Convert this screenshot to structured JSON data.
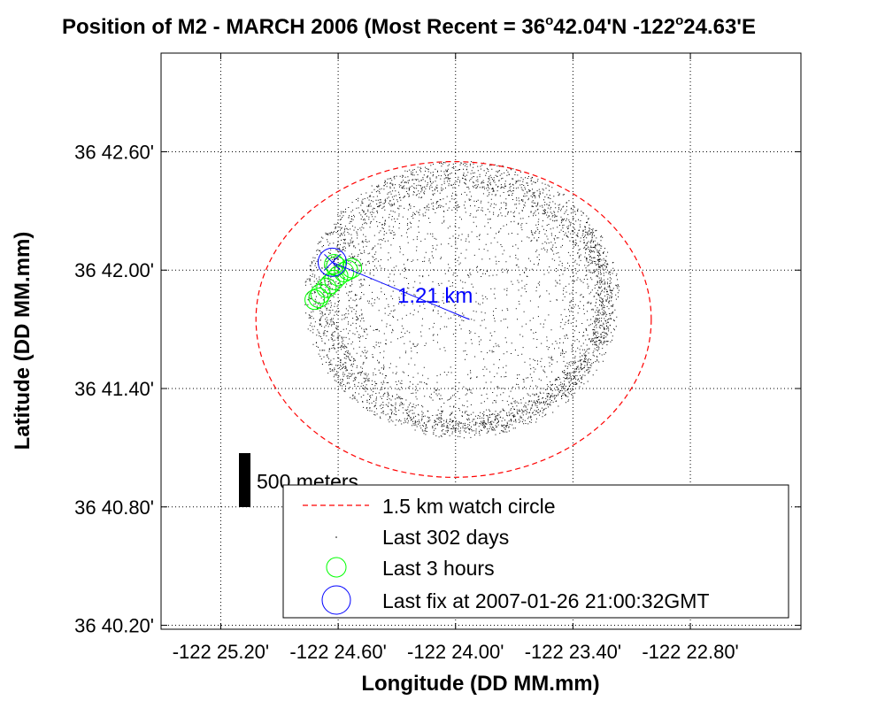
{
  "chart_data": {
    "type": "scatter",
    "title": {
      "prefix": "Position of M2 - MARCH 2006 (Most Recent =  36",
      "deg": "o",
      "mid": "42.04'N -122",
      "deg2": "o",
      "suffix": "24.63'E"
    },
    "xlabel": "Longitude (DD MM.mm)",
    "ylabel": "Latitude (DD MM.mm)",
    "x_tick_labels": [
      "-122 25.20'",
      "-122 24.60'",
      "-122 24.00'",
      "-122 23.40'",
      "-122 22.80'"
    ],
    "y_tick_labels": [
      "36 42.60'",
      "36 42.00'",
      "36 41.40'",
      "36 40.80'",
      "36 40.20'"
    ],
    "x_ticks_min": [
      -25.2,
      -24.6,
      -24.0,
      -23.4,
      -22.8
    ],
    "y_ticks_min": [
      42.6,
      42.0,
      41.4,
      40.8,
      40.2
    ],
    "xlim_min": [
      -25.505,
      -22.235
    ],
    "ylim_min": [
      40.18,
      43.1
    ],
    "grid": true,
    "watch_circle": {
      "center_lon_min": -24.01,
      "center_lat_min": 41.75,
      "radius_lon_min": 1.01,
      "radius_lat_min": 0.8
    },
    "cloud": {
      "center_lon_min": -23.97,
      "center_lat_min": 41.85,
      "radius_lon_min": 0.79,
      "radius_lat_min": 0.69,
      "count": 9000
    },
    "last_3_hours": [
      {
        "x": -24.72,
        "y": 41.85
      },
      {
        "x": -24.7,
        "y": 41.86
      },
      {
        "x": -24.69,
        "y": 41.88
      },
      {
        "x": -24.66,
        "y": 41.91
      },
      {
        "x": -24.64,
        "y": 41.93
      },
      {
        "x": -24.62,
        "y": 41.95
      },
      {
        "x": -24.6,
        "y": 41.97
      },
      {
        "x": -24.57,
        "y": 41.99
      },
      {
        "x": -24.55,
        "y": 42.0
      },
      {
        "x": -24.53,
        "y": 42.01
      },
      {
        "x": -24.62,
        "y": 42.03
      },
      {
        "x": -24.61,
        "y": 42.02
      }
    ],
    "last_fix": {
      "x": -24.63,
      "y": 42.04,
      "label": "Last fix at 2007-01-26 21:00:32GMT"
    },
    "distance_label": "1.21 km",
    "scale_bar_label": "500 meters",
    "legend": {
      "placement": "bottom-right",
      "items": [
        {
          "label": "1.5 km watch circle",
          "style": "dashed-line",
          "color": "#ff0000"
        },
        {
          "label": "Last 302 days",
          "style": "dot",
          "color": "#000000"
        },
        {
          "label": "Last 3 hours",
          "style": "circle",
          "color": "#00ff00"
        },
        {
          "label": "Last fix at 2007-01-26 21:00:32GMT",
          "style": "circle",
          "color": "#0000ff"
        }
      ]
    },
    "colors": {
      "watch": "#ff0000",
      "cloud": "#000000",
      "recent": "#00ff00",
      "fix": "#0000ff",
      "grid": "#000000"
    }
  }
}
